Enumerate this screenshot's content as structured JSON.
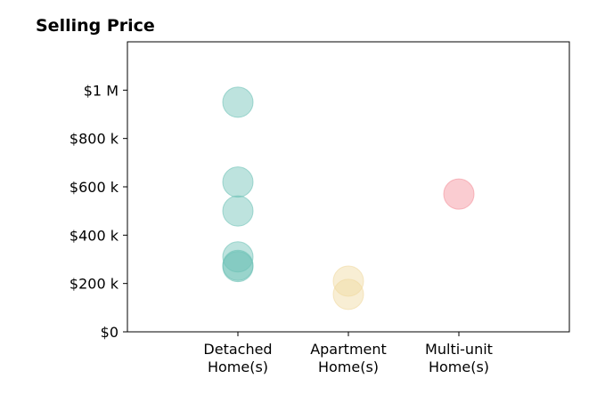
{
  "chart_data": {
    "type": "scatter",
    "title": "Selling Price",
    "xlabel": "",
    "ylabel": "",
    "categories": [
      {
        "lines": [
          "Detached",
          "Home(s)"
        ]
      },
      {
        "lines": [
          "Apartment",
          "Home(s)"
        ]
      },
      {
        "lines": [
          "Multi-unit",
          "Home(s)"
        ]
      }
    ],
    "y_ticks": [
      {
        "value": 0,
        "label": "$0"
      },
      {
        "value": 200000,
        "label": "$200 k"
      },
      {
        "value": 400000,
        "label": "$400 k"
      },
      {
        "value": 600000,
        "label": "$600 k"
      },
      {
        "value": 800000,
        "label": "$800 k"
      },
      {
        "value": 1000000,
        "label": "$1 M"
      }
    ],
    "ylim": [
      0,
      1200000
    ],
    "xlim": [
      -1,
      3
    ],
    "grid": false,
    "series": [
      {
        "category_index": 0,
        "color": "#6cc1b6",
        "values": [
          950000,
          620000,
          500000,
          310000,
          275000,
          270000
        ]
      },
      {
        "category_index": 1,
        "color": "#f0d9a0",
        "values": [
          210000,
          155000
        ]
      },
      {
        "category_index": 2,
        "color": "#f48f99",
        "values": [
          570000
        ]
      }
    ],
    "marker_opacity": 0.45
  }
}
